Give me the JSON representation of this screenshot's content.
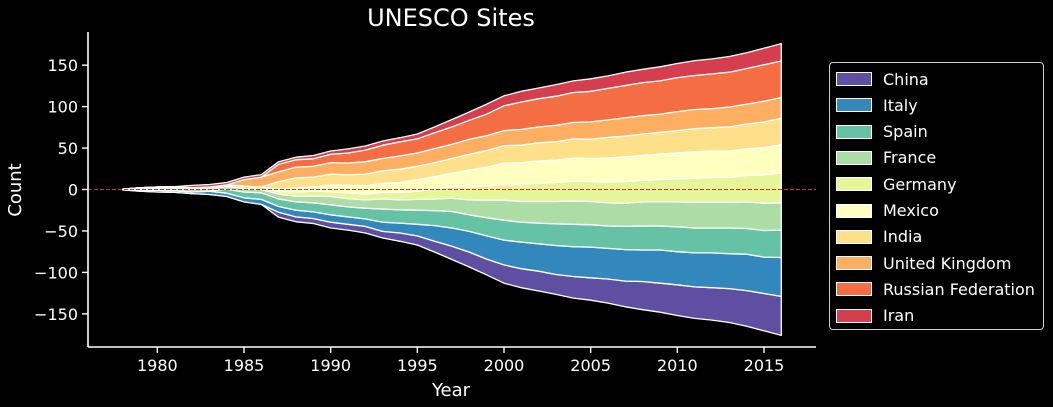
{
  "chart_data": {
    "type": "area",
    "subtype": "streamgraph",
    "title": "UNESCO Sites",
    "xlabel": "Year",
    "ylabel": "Count",
    "xlim": [
      1976,
      2018
    ],
    "ylim": [
      -190,
      190
    ],
    "xticks": [
      1980,
      1985,
      1990,
      1995,
      2000,
      2005,
      2010,
      2015
    ],
    "yticks": [
      -150,
      -100,
      -50,
      0,
      50,
      100,
      150
    ],
    "xtick_labels": [
      "1980",
      "1985",
      "1990",
      "1995",
      "2000",
      "2005",
      "2010",
      "2015"
    ],
    "ytick_labels": [
      "−150",
      "−100",
      "−50",
      "0",
      "50",
      "100",
      "150"
    ],
    "baseline": "symmetric",
    "zero_line": true,
    "zero_line_color": "#c0392b",
    "legend_position": "right",
    "x": [
      1978,
      1979,
      1980,
      1981,
      1982,
      1983,
      1984,
      1985,
      1986,
      1987,
      1988,
      1989,
      1990,
      1991,
      1992,
      1993,
      1994,
      1995,
      1996,
      1997,
      1998,
      1999,
      2000,
      2001,
      2002,
      2003,
      2004,
      2005,
      2006,
      2007,
      2008,
      2009,
      2010,
      2011,
      2012,
      2013,
      2014,
      2015,
      2016
    ],
    "series": [
      {
        "name": "China",
        "color": "#5e4fa2",
        "values": [
          0,
          0,
          0,
          0,
          0,
          0,
          0,
          0,
          0,
          6,
          6,
          6,
          7,
          7,
          8,
          8,
          10,
          11,
          13,
          16,
          18,
          19,
          22,
          23,
          24,
          24,
          26,
          27,
          29,
          31,
          34,
          35,
          37,
          38,
          39,
          41,
          43,
          45,
          47
        ]
      },
      {
        "name": "Italy",
        "color": "#3288bd",
        "values": [
          0,
          1,
          2,
          2,
          2,
          4,
          4,
          5,
          6,
          7,
          8,
          8,
          9,
          9,
          9,
          11,
          12,
          14,
          19,
          22,
          25,
          28,
          30,
          32,
          33,
          35,
          36,
          37,
          37,
          38,
          38,
          40,
          40,
          41,
          42,
          42,
          44,
          44,
          47
        ]
      },
      {
        "name": "Spain",
        "color": "#66c2a5",
        "values": [
          0,
          0,
          0,
          0,
          0,
          0,
          5,
          7,
          8,
          9,
          10,
          11,
          12,
          12,
          13,
          16,
          16,
          17,
          18,
          20,
          20,
          22,
          24,
          24,
          25,
          26,
          27,
          27,
          27,
          28,
          29,
          29,
          30,
          30,
          30,
          31,
          31,
          32,
          33
        ]
      },
      {
        "name": "France",
        "color": "#abdda4",
        "values": [
          0,
          2,
          2,
          3,
          3,
          3,
          3,
          4,
          4,
          6,
          7,
          8,
          10,
          10,
          10,
          12,
          12,
          13,
          14,
          16,
          18,
          21,
          24,
          25,
          26,
          27,
          28,
          28,
          28,
          28,
          29,
          29,
          30,
          31,
          31,
          31,
          32,
          33,
          33
        ]
      },
      {
        "name": "Germany",
        "color": "#e6f598",
        "values": [
          1,
          1,
          2,
          2,
          2,
          2,
          2,
          3,
          3,
          3,
          5,
          6,
          6,
          7,
          7,
          8,
          9,
          10,
          12,
          14,
          16,
          17,
          19,
          20,
          22,
          23,
          24,
          24,
          25,
          26,
          26,
          27,
          28,
          29,
          30,
          30,
          32,
          34,
          36
        ]
      },
      {
        "name": "Mexico",
        "color": "#ffffbf",
        "values": [
          0,
          0,
          0,
          0,
          0,
          0,
          0,
          0,
          0,
          3,
          5,
          5,
          8,
          9,
          10,
          11,
          12,
          14,
          15,
          16,
          20,
          23,
          26,
          27,
          27,
          27,
          28,
          28,
          29,
          30,
          30,
          31,
          31,
          32,
          32,
          32,
          32,
          33,
          34
        ]
      },
      {
        "name": "India",
        "color": "#fee08b",
        "values": [
          0,
          0,
          0,
          0,
          0,
          0,
          0,
          0,
          0,
          9,
          12,
          12,
          13,
          13,
          14,
          15,
          16,
          16,
          17,
          18,
          19,
          20,
          21,
          21,
          22,
          22,
          23,
          23,
          25,
          25,
          26,
          26,
          27,
          28,
          28,
          29,
          30,
          31,
          32
        ]
      },
      {
        "name": "United Kingdom",
        "color": "#fdae61",
        "values": [
          0,
          0,
          0,
          0,
          0,
          0,
          0,
          8,
          12,
          12,
          13,
          13,
          14,
          14,
          15,
          15,
          16,
          16,
          17,
          17,
          18,
          18,
          18,
          19,
          19,
          20,
          20,
          21,
          21,
          22,
          22,
          22,
          23,
          23,
          23,
          24,
          24,
          25,
          25
        ]
      },
      {
        "name": "Russian Federation",
        "color": "#f46d43",
        "values": [
          0,
          0,
          0,
          0,
          0,
          0,
          0,
          0,
          0,
          9,
          9,
          9,
          10,
          12,
          14,
          16,
          17,
          17,
          19,
          21,
          23,
          26,
          30,
          33,
          34,
          35,
          36,
          37,
          38,
          39,
          40,
          40,
          41,
          41,
          42,
          42,
          43,
          44,
          44
        ]
      },
      {
        "name": "Iran",
        "color": "#d53e4f",
        "values": [
          0,
          0,
          0,
          0,
          3,
          3,
          3,
          3,
          3,
          3,
          3,
          4,
          4,
          5,
          5,
          5,
          5,
          6,
          7,
          9,
          10,
          12,
          12,
          13,
          13,
          14,
          14,
          15,
          15,
          16,
          16,
          17,
          17,
          18,
          18,
          19,
          19,
          20,
          21
        ]
      }
    ]
  }
}
